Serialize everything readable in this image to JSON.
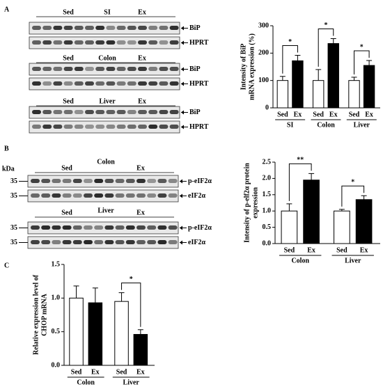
{
  "panel_labels": [
    "A",
    "B",
    "C"
  ],
  "blots": [
    {
      "group": "Sed",
      "tissue": "SI",
      "treatment": "Ex",
      "rows": [
        "BiP",
        "HPRT"
      ]
    },
    {
      "group": "Sed",
      "tissue": "Colon",
      "treatment": "Ex",
      "rows": [
        "BiP",
        "HPRT"
      ]
    },
    {
      "group": "Sed",
      "tissue": "Liver",
      "treatment": "Ex",
      "rows": [
        "BiP",
        "HPRT"
      ]
    },
    {
      "group": "Sed",
      "tissue": "Colon",
      "treatment": "Ex",
      "rows": [
        "p-eIF2α",
        "eIF2α"
      ],
      "size_unit": "kDa",
      "sizes": [
        35,
        35
      ]
    },
    {
      "group": "Sed",
      "tissue": "Liver",
      "treatment": "Ex",
      "rows": [
        "p-eIF2α",
        "eIF2α"
      ],
      "sizes": [
        35,
        35
      ]
    }
  ],
  "chart_data": [
    {
      "type": "bar",
      "ylabel": [
        "Intensity of BiP",
        "mRNA expression (%)"
      ],
      "categories": [
        "Sed",
        "Ex",
        "Sed",
        "Ex",
        "Sed",
        "Ex"
      ],
      "groups": [
        "SI",
        "Colon",
        "Liver"
      ],
      "values": [
        100,
        172,
        100,
        235,
        100,
        155
      ],
      "errors": [
        15,
        20,
        40,
        18,
        12,
        18
      ],
      "colors": [
        "#ffffff",
        "#000000",
        "#ffffff",
        "#000000",
        "#ffffff",
        "#000000"
      ],
      "ylim": [
        0,
        300
      ],
      "yticks": [
        0,
        100,
        200,
        300
      ],
      "significance": [
        "*",
        "*",
        "*"
      ]
    },
    {
      "type": "bar",
      "ylabel": [
        "Intensity of p-elf2α protein",
        "expression"
      ],
      "categories": [
        "Sed",
        "Ex",
        "Sed",
        "Ex"
      ],
      "groups": [
        "Colon",
        "Liver"
      ],
      "values": [
        1.0,
        1.95,
        1.0,
        1.35
      ],
      "errors": [
        0.22,
        0.2,
        0.05,
        0.12
      ],
      "colors": [
        "#ffffff",
        "#000000",
        "#ffffff",
        "#000000"
      ],
      "ylim": [
        0,
        2.5
      ],
      "yticks": [
        {
          "value": 0,
          "label": "0.0"
        },
        0.5,
        {
          "value": 1,
          "label": "1.0"
        },
        1.5,
        {
          "value": 2,
          "label": "2.0"
        },
        2.5
      ],
      "significance": [
        "**",
        "*"
      ]
    },
    {
      "type": "bar",
      "ylabel": [
        "Relative expression level of",
        "CHOP mRNA"
      ],
      "categories": [
        "Sed",
        "Ex",
        "Sed",
        "Ex"
      ],
      "groups": [
        "Colon",
        "Liver"
      ],
      "values": [
        1.0,
        0.93,
        0.95,
        0.46
      ],
      "errors": [
        0.18,
        0.22,
        0.13,
        0.07
      ],
      "colors": [
        "#ffffff",
        "#000000",
        "#ffffff",
        "#000000"
      ],
      "ylim": [
        0,
        1.5
      ],
      "yticks": [
        {
          "value": 0,
          "label": "0.0"
        },
        0.5,
        {
          "value": 1,
          "label": "1.0"
        },
        1.5
      ],
      "significance": [
        null,
        "*"
      ]
    }
  ]
}
